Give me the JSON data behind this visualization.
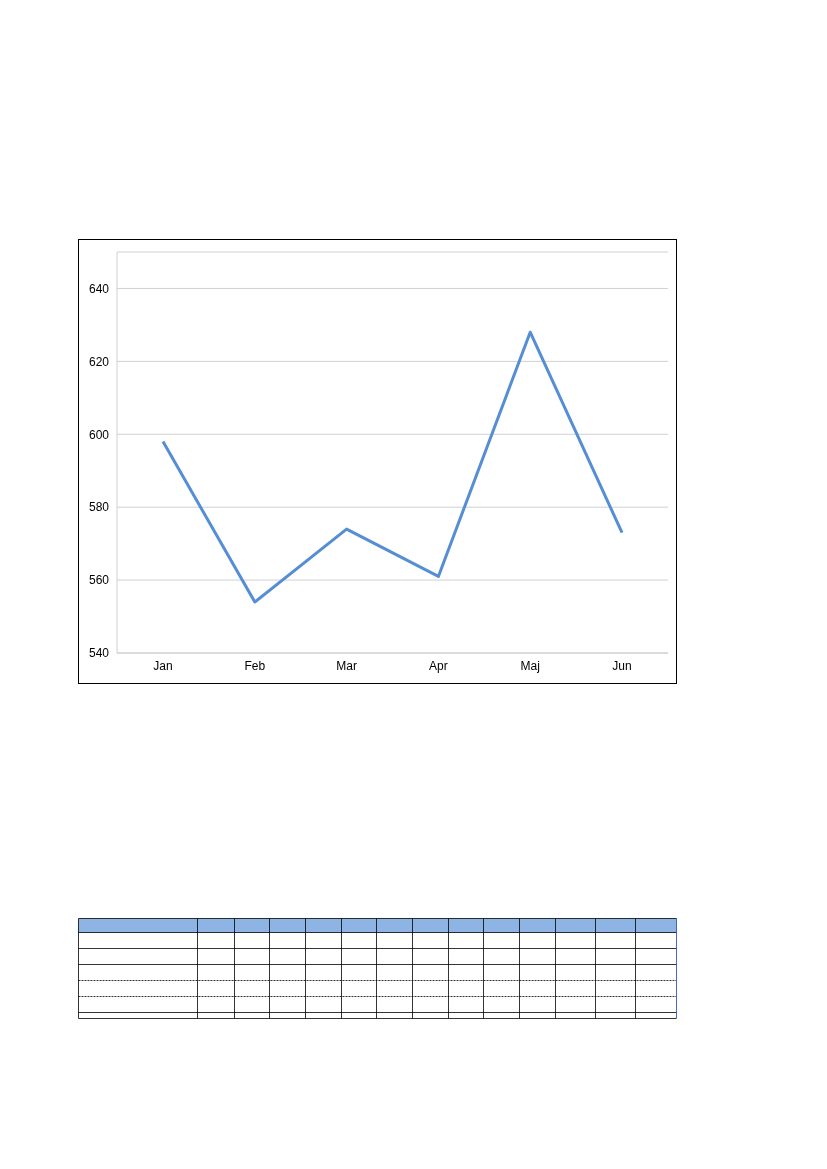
{
  "chart_data": {
    "type": "line",
    "categories": [
      "Jan",
      "Feb",
      "Mar",
      "Apr",
      "Maj",
      "Jun"
    ],
    "series": [
      {
        "color": "#558ed5",
        "values": [
          598,
          554,
          574,
          561,
          628,
          573
        ]
      }
    ],
    "ylim": [
      540,
      650
    ],
    "yticks": [
      540,
      560,
      580,
      600,
      620,
      640
    ],
    "grid": "y",
    "legend": false,
    "marker": "none",
    "line_style": "solid"
  }
}
